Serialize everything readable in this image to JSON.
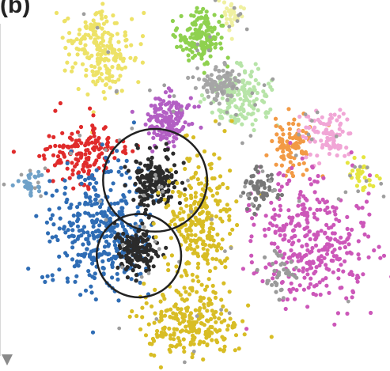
{
  "panel": {
    "label": "(b)"
  },
  "chart_data": {
    "type": "scatter",
    "title": "",
    "xlabel": "",
    "ylabel": "",
    "grid": false,
    "legend": "none",
    "clusters": [
      {
        "color": "#ede267",
        "center": [
          -0.55,
          0.82
        ],
        "spread": [
          0.1,
          0.13
        ],
        "share": 0.07
      },
      {
        "color": "#8fd14f",
        "center": [
          0.05,
          0.92
        ],
        "spread": [
          0.07,
          0.08
        ],
        "share": 0.05
      },
      {
        "color": "#eff0a0",
        "center": [
          0.25,
          1.05
        ],
        "spread": [
          0.03,
          0.04
        ],
        "share": 0.01
      },
      {
        "color": "#b7e4a8",
        "center": [
          0.3,
          0.55
        ],
        "spread": [
          0.09,
          0.09
        ],
        "share": 0.05
      },
      {
        "color": "#a6a6a6",
        "center": [
          0.18,
          0.62
        ],
        "spread": [
          0.06,
          0.05
        ],
        "share": 0.03
      },
      {
        "color": "#b35fc4",
        "center": [
          -0.15,
          0.4
        ],
        "spread": [
          0.08,
          0.08
        ],
        "share": 0.05
      },
      {
        "color": "#e02b2b",
        "center": [
          -0.65,
          0.2
        ],
        "spread": [
          0.12,
          0.09
        ],
        "share": 0.05
      },
      {
        "color": "#6fa1c8",
        "center": [
          -1.0,
          0.0
        ],
        "spread": [
          0.04,
          0.04
        ],
        "share": 0.01
      },
      {
        "color": "#2f6db5",
        "center": [
          -0.55,
          -0.3
        ],
        "spread": [
          0.15,
          0.2
        ],
        "share": 0.12
      },
      {
        "color": "#2b2b2b",
        "center": [
          -0.22,
          0.02
        ],
        "spread": [
          0.07,
          0.08
        ],
        "share": 0.06
      },
      {
        "color": "#2b2b2b",
        "center": [
          -0.33,
          -0.42
        ],
        "spread": [
          0.07,
          0.07
        ],
        "share": 0.05
      },
      {
        "color": "#d8bd25",
        "center": [
          0.05,
          -0.25
        ],
        "spread": [
          0.1,
          0.22
        ],
        "share": 0.09
      },
      {
        "color": "#d8bd25",
        "center": [
          0.0,
          -0.9
        ],
        "spread": [
          0.15,
          0.1
        ],
        "share": 0.07
      },
      {
        "color": "#f29a45",
        "center": [
          0.62,
          0.25
        ],
        "spread": [
          0.06,
          0.09
        ],
        "share": 0.03
      },
      {
        "color": "#f1a6d6",
        "center": [
          0.85,
          0.3
        ],
        "spread": [
          0.08,
          0.08
        ],
        "share": 0.03
      },
      {
        "color": "#e5e540",
        "center": [
          1.05,
          0.05
        ],
        "spread": [
          0.04,
          0.05
        ],
        "share": 0.01
      },
      {
        "color": "#cc57b9",
        "center": [
          0.75,
          -0.35
        ],
        "spread": [
          0.18,
          0.2
        ],
        "share": 0.11
      },
      {
        "color": "#777777",
        "center": [
          0.42,
          -0.05
        ],
        "spread": [
          0.05,
          0.06
        ],
        "share": 0.02
      },
      {
        "color": "#9a9a9a",
        "center": [
          0.55,
          -0.55
        ],
        "spread": [
          0.05,
          0.06
        ],
        "share": 0.01
      }
    ],
    "annotations": [
      {
        "shape": "circle",
        "center": [
          -0.22,
          0.02
        ],
        "radius": 0.32
      },
      {
        "shape": "circle",
        "center": [
          -0.32,
          -0.45
        ],
        "radius": 0.26
      }
    ],
    "xlim": [
      -1.15,
      1.2
    ],
    "ylim": [
      -1.12,
      1.12
    ]
  }
}
